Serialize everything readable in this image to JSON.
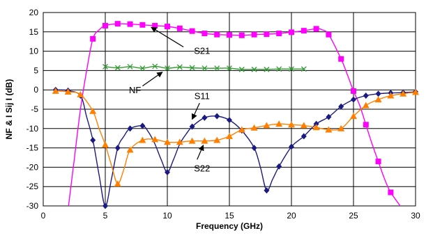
{
  "chart_data": {
    "type": "line",
    "xlabel": "Frequency (GHz)",
    "ylabel": "NF & I Sij I (dB)",
    "xlim": [
      0,
      30
    ],
    "ylim": [
      -30,
      20
    ],
    "x_ticks": [
      0,
      5,
      10,
      15,
      20,
      25,
      30
    ],
    "y_ticks": [
      20,
      15,
      10,
      5,
      0,
      -5,
      -10,
      -15,
      -20,
      -25,
      -30
    ],
    "grid": true,
    "legend": "none",
    "colors": {
      "S21": "#ff00ff",
      "NF": "#339933",
      "S11": "#1a1a80",
      "S22": "#ff7f00",
      "grid": "#000000",
      "plot_background": "#ffffff"
    },
    "series": [
      {
        "name": "S21",
        "marker": "square",
        "curve": [
          [
            2,
            -31
          ],
          [
            2.5,
            -18
          ],
          [
            3,
            -5
          ],
          [
            3.5,
            5
          ],
          [
            4,
            13.2
          ],
          [
            4.5,
            15.5
          ],
          [
            5,
            16.6
          ],
          [
            6,
            17.1
          ],
          [
            7,
            17
          ],
          [
            8,
            16.8
          ],
          [
            9,
            16.6
          ],
          [
            10,
            16.4
          ],
          [
            11,
            15.9
          ],
          [
            12,
            15.2
          ],
          [
            13,
            14.6
          ],
          [
            14,
            14.3
          ],
          [
            15,
            14.2
          ],
          [
            16,
            14.1
          ],
          [
            17,
            14.3
          ],
          [
            18,
            14.4
          ],
          [
            19,
            14.6
          ],
          [
            20,
            14.9
          ],
          [
            21,
            15.3
          ],
          [
            22,
            15.8
          ],
          [
            22.5,
            15.5
          ],
          [
            23,
            14.3
          ],
          [
            24,
            8
          ],
          [
            24.5,
            4
          ],
          [
            25,
            -0.3
          ],
          [
            25.5,
            -4
          ],
          [
            26,
            -9
          ],
          [
            26.5,
            -14
          ],
          [
            27,
            -18.5
          ],
          [
            27.5,
            -23
          ],
          [
            28,
            -26.5
          ],
          [
            29,
            -31
          ]
        ],
        "points": [
          [
            4,
            13.2
          ],
          [
            5,
            16.6
          ],
          [
            6,
            17.1
          ],
          [
            7,
            17
          ],
          [
            8,
            16.8
          ],
          [
            9,
            16.6
          ],
          [
            10,
            16.4
          ],
          [
            11,
            15.9
          ],
          [
            12,
            15.2
          ],
          [
            13,
            14.6
          ],
          [
            14,
            14.3
          ],
          [
            15,
            14.2
          ],
          [
            16,
            14.1
          ],
          [
            17,
            14.3
          ],
          [
            18,
            14.4
          ],
          [
            19,
            14.6
          ],
          [
            20,
            14.9
          ],
          [
            21,
            15.3
          ],
          [
            22,
            15.8
          ],
          [
            23,
            14.3
          ],
          [
            24,
            8
          ],
          [
            25,
            -0.3
          ],
          [
            26,
            -9
          ],
          [
            27,
            -18.5
          ],
          [
            28,
            -26.5
          ]
        ]
      },
      {
        "name": "NF",
        "marker": "x",
        "curve": [
          [
            5,
            6
          ],
          [
            6,
            5.7
          ],
          [
            7,
            6
          ],
          [
            8,
            5.6
          ],
          [
            9,
            6.1
          ],
          [
            10,
            5.6
          ],
          [
            11,
            5.9
          ],
          [
            12,
            5.7
          ],
          [
            13,
            5.6
          ],
          [
            14,
            5.6
          ],
          [
            15,
            5.6
          ],
          [
            16,
            5.3
          ],
          [
            17,
            5.3
          ],
          [
            18,
            5.3
          ],
          [
            19,
            5.4
          ],
          [
            20,
            5.4
          ],
          [
            21,
            5.4
          ]
        ],
        "points": [
          [
            5,
            6
          ],
          [
            6,
            5.7
          ],
          [
            7,
            6
          ],
          [
            8,
            5.6
          ],
          [
            9,
            6.1
          ],
          [
            10,
            5.6
          ],
          [
            11,
            5.9
          ],
          [
            12,
            5.7
          ],
          [
            13,
            5.6
          ],
          [
            14,
            5.6
          ],
          [
            15,
            5.6
          ],
          [
            16,
            5.3
          ],
          [
            17,
            5.3
          ],
          [
            18,
            5.3
          ],
          [
            19,
            5.4
          ],
          [
            20,
            5.4
          ],
          [
            21,
            5.4
          ]
        ]
      },
      {
        "name": "S11",
        "marker": "diamond",
        "curve": [
          [
            1,
            0
          ],
          [
            2,
            -0.2
          ],
          [
            3,
            -1.5
          ],
          [
            3.5,
            -7
          ],
          [
            4,
            -13
          ],
          [
            4.5,
            -22
          ],
          [
            5,
            -30
          ],
          [
            5.5,
            -23
          ],
          [
            6,
            -15
          ],
          [
            6.5,
            -12
          ],
          [
            7,
            -10
          ],
          [
            8,
            -9.3
          ],
          [
            8.5,
            -11
          ],
          [
            9,
            -14
          ],
          [
            9.5,
            -18
          ],
          [
            10,
            -21.3
          ],
          [
            10.5,
            -18
          ],
          [
            11,
            -14
          ],
          [
            11.5,
            -11.5
          ],
          [
            12,
            -9.5
          ],
          [
            13,
            -7.2
          ],
          [
            14,
            -6.8
          ],
          [
            15,
            -7.8
          ],
          [
            16,
            -10.5
          ],
          [
            17,
            -15
          ],
          [
            17.5,
            -20
          ],
          [
            18,
            -26
          ],
          [
            18.5,
            -23
          ],
          [
            19,
            -19.8
          ],
          [
            20,
            -14.7
          ],
          [
            21,
            -12
          ],
          [
            22,
            -8.8
          ],
          [
            23,
            -7
          ],
          [
            24,
            -4.3
          ],
          [
            25,
            -2.5
          ],
          [
            26,
            -1.5
          ],
          [
            27,
            -1
          ],
          [
            28,
            -0.8
          ],
          [
            29,
            -0.7
          ],
          [
            30,
            -0.5
          ]
        ],
        "points": [
          [
            1,
            0
          ],
          [
            2,
            -0.2
          ],
          [
            3,
            -1.5
          ],
          [
            4,
            -13
          ],
          [
            5,
            -30
          ],
          [
            6,
            -15
          ],
          [
            7,
            -10
          ],
          [
            8,
            -9.3
          ],
          [
            10,
            -21.3
          ],
          [
            12,
            -9.5
          ],
          [
            13,
            -7.2
          ],
          [
            14,
            -6.8
          ],
          [
            15,
            -7.8
          ],
          [
            16,
            -10.5
          ],
          [
            17,
            -15
          ],
          [
            18,
            -26
          ],
          [
            19,
            -19.8
          ],
          [
            20,
            -14.7
          ],
          [
            21,
            -12
          ],
          [
            22,
            -8.8
          ],
          [
            23,
            -7
          ],
          [
            24,
            -4.3
          ],
          [
            25,
            -2.5
          ],
          [
            26,
            -1.5
          ],
          [
            27,
            -1
          ],
          [
            28,
            -0.8
          ],
          [
            29,
            -0.7
          ],
          [
            30,
            -0.5
          ]
        ]
      },
      {
        "name": "S22",
        "marker": "triangle",
        "curve": [
          [
            1,
            -0.3
          ],
          [
            2,
            -0.5
          ],
          [
            3,
            -1.2
          ],
          [
            4,
            -5.5
          ],
          [
            4.5,
            -10
          ],
          [
            5,
            -14.2
          ],
          [
            5.5,
            -19.5
          ],
          [
            6,
            -24.3
          ],
          [
            6.5,
            -20.5
          ],
          [
            7,
            -15.5
          ],
          [
            8,
            -13
          ],
          [
            9,
            -12.8
          ],
          [
            10,
            -13.5
          ],
          [
            11,
            -13.5
          ],
          [
            12,
            -13.2
          ],
          [
            13,
            -13.2
          ],
          [
            14,
            -13
          ],
          [
            15,
            -12
          ],
          [
            16,
            -10.3
          ],
          [
            17,
            -9.8
          ],
          [
            18,
            -9.2
          ],
          [
            19,
            -8.8
          ],
          [
            20,
            -9
          ],
          [
            21,
            -9.2
          ],
          [
            22,
            -9.7
          ],
          [
            23,
            -10.3
          ],
          [
            24,
            -10
          ],
          [
            25,
            -6.8
          ],
          [
            26,
            -4
          ],
          [
            27,
            -2.5
          ],
          [
            28,
            -1.5
          ],
          [
            29,
            -1
          ],
          [
            30,
            -0.6
          ]
        ],
        "points": [
          [
            1,
            -0.3
          ],
          [
            2,
            -0.5
          ],
          [
            3,
            -1.2
          ],
          [
            4,
            -5.5
          ],
          [
            5,
            -14.2
          ],
          [
            6,
            -24.3
          ],
          [
            7,
            -15.5
          ],
          [
            8,
            -13
          ],
          [
            9,
            -12.8
          ],
          [
            10,
            -13.5
          ],
          [
            11,
            -13.5
          ],
          [
            12,
            -13.2
          ],
          [
            13,
            -13.2
          ],
          [
            14,
            -13
          ],
          [
            15,
            -12
          ],
          [
            16,
            -10.3
          ],
          [
            17,
            -9.8
          ],
          [
            18,
            -9.2
          ],
          [
            19,
            -8.8
          ],
          [
            20,
            -9
          ],
          [
            21,
            -9.2
          ],
          [
            22,
            -9.7
          ],
          [
            23,
            -10.3
          ],
          [
            24,
            -10
          ],
          [
            25,
            -6.8
          ],
          [
            26,
            -4
          ],
          [
            27,
            -2.5
          ],
          [
            28,
            -1.5
          ],
          [
            29,
            -1
          ],
          [
            30,
            -0.6
          ]
        ]
      }
    ],
    "annotations": [
      {
        "text": "S21",
        "series": "S21",
        "label_at": [
          12.8,
          10.2
        ],
        "arrow_from": [
          11.3,
          11.1
        ],
        "arrow_to": [
          8.7,
          16.2
        ]
      },
      {
        "text": "NF",
        "series": "NF",
        "label_at": [
          7.4,
          0
        ],
        "arrow_from": [
          8,
          1
        ],
        "arrow_to": [
          9.6,
          4.6
        ]
      },
      {
        "text": "S11",
        "series": "S11",
        "label_at": [
          12.8,
          -1.5
        ],
        "arrow_from": [
          12.6,
          -3.4
        ],
        "arrow_to": [
          12,
          -7.6
        ]
      },
      {
        "text": "S22",
        "series": "S22",
        "label_at": [
          12.8,
          -20.2
        ],
        "arrow_from": [
          12.4,
          -18
        ],
        "arrow_to": [
          12.9,
          -14.3
        ]
      }
    ]
  }
}
